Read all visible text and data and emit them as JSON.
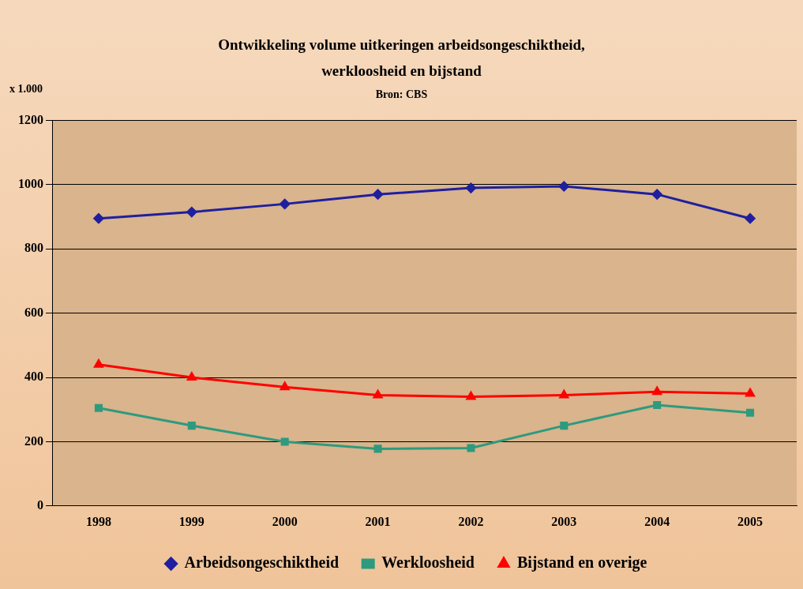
{
  "chart_data": {
    "type": "line",
    "title": "Ontwikkeling volume uitkeringen arbeidsongeschiktheid,\nwerkloosheid en bijstand",
    "subtitle": "Bron: CBS",
    "ylabel": "x 1.000",
    "categories": [
      "1998",
      "1999",
      "2000",
      "2001",
      "2002",
      "2003",
      "2004",
      "2005"
    ],
    "series": [
      {
        "name": "Arbeidsongeschiktheid",
        "color": "#1f1f9f",
        "marker": "diamond",
        "values": [
          895,
          915,
          940,
          970,
          990,
          995,
          970,
          895
        ]
      },
      {
        "name": "Werkloosheid",
        "color": "#2e9a7e",
        "marker": "square",
        "values": [
          305,
          250,
          200,
          178,
          180,
          250,
          314,
          290
        ]
      },
      {
        "name": "Bijstand en overige",
        "color": "#ff0000",
        "marker": "triangle",
        "values": [
          440,
          400,
          370,
          345,
          340,
          345,
          355,
          350
        ]
      }
    ],
    "ylim": [
      0,
      1200
    ],
    "yticks": [
      0,
      200,
      400,
      600,
      800,
      1000,
      1200
    ],
    "grid": "y",
    "legend": "bottom",
    "line_style": "solid"
  }
}
